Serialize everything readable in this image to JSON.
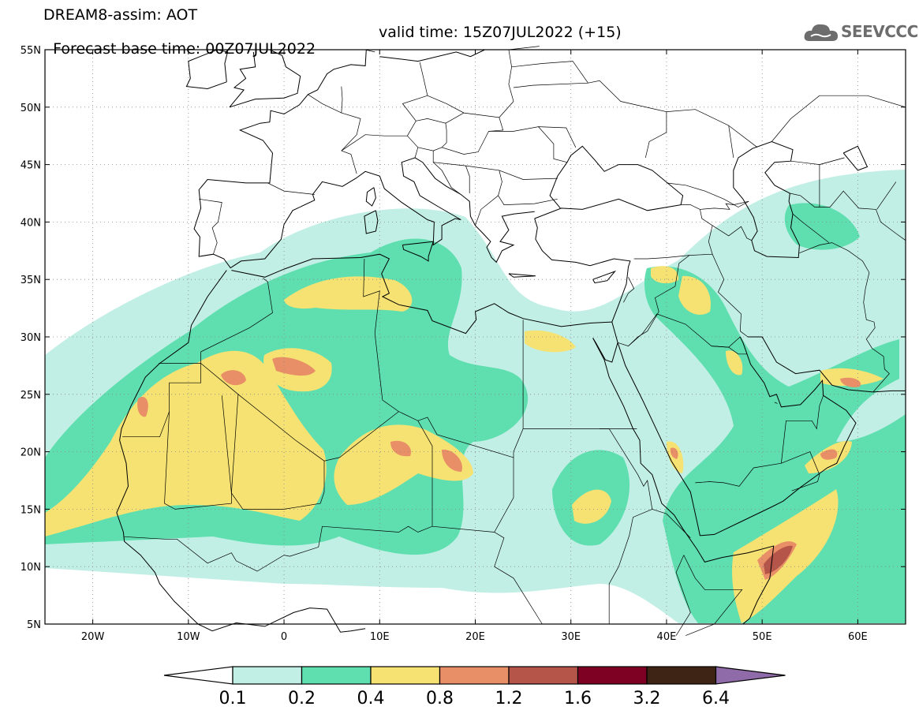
{
  "header": {
    "line1": "DREAM8-assim: AOT",
    "line2_left": "Forecast base time: 00Z07JUL2022",
    "line2_right": "valid time: 15Z07JUL2022 (+15)",
    "logo_text": "SEEVCCC",
    "logo_icon": "cloud-icon"
  },
  "map": {
    "lon_range": [
      -25,
      65
    ],
    "lat_range": [
      5,
      55
    ],
    "lon_ticks": [
      "20W",
      "10W",
      "0",
      "10E",
      "20E",
      "30E",
      "40E",
      "50E",
      "60E"
    ],
    "lat_ticks": [
      "55N",
      "50N",
      "45N",
      "40N",
      "35N",
      "30N",
      "25N",
      "20N",
      "15N",
      "10N",
      "5N"
    ]
  },
  "legend": {
    "labels": [
      "0.1",
      "0.2",
      "0.4",
      "0.8",
      "1.2",
      "1.6",
      "3.2",
      "6.4"
    ],
    "colors": [
      "#ffffff",
      "#c2efe5",
      "#5fdfb0",
      "#f5e272",
      "#e98f67",
      "#b5554a",
      "#7e0023",
      "#3d2414",
      "#8f6ba9"
    ]
  }
}
